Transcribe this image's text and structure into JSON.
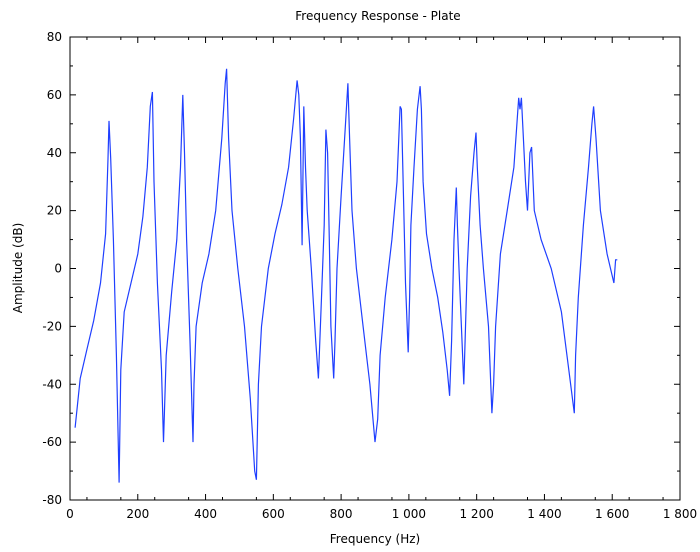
{
  "chart_data": {
    "type": "line",
    "title": "Frequency Response - Plate",
    "xlabel": "Frequency (Hz)",
    "ylabel": "Amplitude (dB)",
    "xlim": [
      0,
      1800
    ],
    "ylim": [
      -80,
      80
    ],
    "xticks": [
      0,
      200,
      400,
      600,
      800,
      1000,
      1200,
      1400,
      1600,
      1800
    ],
    "xtick_labels": [
      "0",
      "200",
      "400",
      "600",
      "800",
      "1 000",
      "1 200",
      "1 400",
      "1 600",
      "1 800"
    ],
    "yticks": [
      -80,
      -60,
      -40,
      -20,
      0,
      20,
      40,
      60,
      80
    ],
    "ytick_labels": [
      "-80",
      "-60",
      "-40",
      "-20",
      "0",
      "20",
      "40",
      "60",
      "80"
    ],
    "grid": false,
    "line_color": "#1f3fff",
    "series": [
      {
        "x": [
          15,
          30,
          50,
          70,
          90,
          105,
          112,
          115,
          120,
          128,
          137,
          145,
          150,
          160,
          180,
          200,
          215,
          228,
          237,
          243,
          248,
          258,
          270,
          276,
          284,
          300,
          315,
          326,
          333,
          338,
          344,
          354,
          363,
          366,
          372,
          390,
          410,
          430,
          448,
          458,
          462,
          468,
          478,
          495,
          515,
          532,
          545,
          550,
          556,
          565,
          585,
          605,
          625,
          645,
          660,
          670,
          675,
          680,
          685,
          690,
          695,
          700,
          712,
          725,
          733,
          742,
          750,
          755,
          760,
          765,
          770,
          778,
          782,
          788,
          800,
          813,
          820,
          825,
          832,
          845,
          865,
          885,
          900,
          908,
          915,
          930,
          950,
          965,
          974,
          978,
          982,
          990,
          998,
          1002,
          1006,
          1015,
          1025,
          1033,
          1037,
          1042,
          1052,
          1068,
          1085,
          1100,
          1113,
          1120,
          1126,
          1133,
          1140,
          1143,
          1148,
          1155,
          1162,
          1166,
          1172,
          1182,
          1192,
          1198,
          1202,
          1210,
          1220,
          1235,
          1245,
          1250,
          1256,
          1270,
          1290,
          1310,
          1324,
          1328,
          1332,
          1338,
          1344,
          1350,
          1357,
          1362,
          1370,
          1390,
          1420,
          1450,
          1472,
          1488,
          1492,
          1500,
          1515,
          1530,
          1540,
          1545,
          1552,
          1565,
          1585,
          1605,
          1610,
          1615
        ],
        "y": [
          -55,
          -38,
          -28,
          -18,
          -5,
          12,
          38,
          51,
          38,
          10,
          -30,
          -74,
          -35,
          -15,
          -5,
          5,
          18,
          35,
          56,
          61,
          30,
          -5,
          -35,
          -60,
          -30,
          -8,
          10,
          35,
          60,
          40,
          10,
          -25,
          -60,
          -40,
          -20,
          -5,
          5,
          20,
          45,
          64,
          69,
          45,
          20,
          0,
          -20,
          -45,
          -70,
          -73,
          -40,
          -20,
          0,
          12,
          22,
          35,
          52,
          65,
          60,
          45,
          8,
          56,
          35,
          20,
          0,
          -25,
          -38,
          -10,
          15,
          48,
          40,
          10,
          -20,
          -38,
          -25,
          0,
          25,
          50,
          64,
          45,
          20,
          0,
          -20,
          -40,
          -60,
          -52,
          -30,
          -10,
          10,
          30,
          56,
          55,
          35,
          -5,
          -29,
          -10,
          15,
          35,
          55,
          63,
          55,
          30,
          12,
          0,
          -10,
          -22,
          -35,
          -44,
          -25,
          10,
          28,
          15,
          0,
          -20,
          -40,
          -25,
          0,
          25,
          40,
          47,
          35,
          15,
          0,
          -20,
          -50,
          -40,
          -20,
          5,
          20,
          35,
          59,
          55,
          59,
          45,
          30,
          20,
          40,
          42,
          20,
          10,
          0,
          -15,
          -35,
          -50,
          -30,
          -10,
          15,
          35,
          50,
          56,
          45,
          20,
          5,
          -5,
          3,
          3
        ]
      }
    ]
  }
}
